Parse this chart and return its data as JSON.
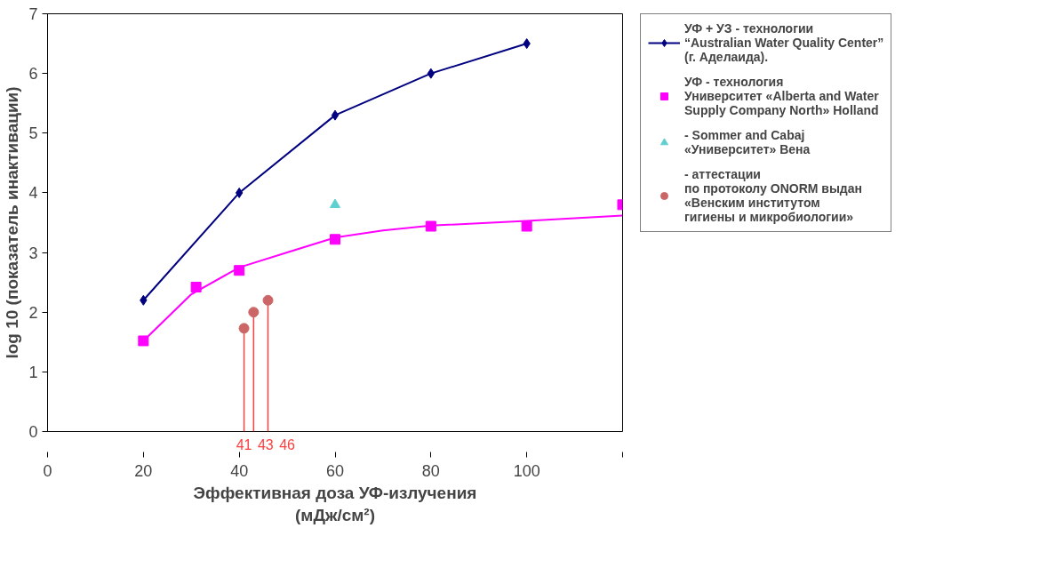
{
  "chart_data": {
    "type": "line",
    "xlabel": "Эффективная доза УФ-излучения\n(мДж/см²)",
    "ylabel": "log 10 (показатель инактивации)",
    "xlim": [
      0,
      120
    ],
    "xticks": [
      0,
      20,
      40,
      60,
      80,
      100,
      {
        "value": 120,
        "label": null
      }
    ],
    "ylim": [
      0,
      7
    ],
    "yticks": [
      0,
      1,
      2,
      3,
      4,
      5,
      6,
      7
    ],
    "grid": false,
    "legend": "right",
    "series": [
      {
        "name": "УФ + УЗ - технологии\n“Australian Water Quality Center”\n(г. Аделаида).",
        "marker": "diamond",
        "color": "#000080",
        "x": [
          20,
          40,
          60,
          80,
          100
        ],
        "values": [
          2.2,
          4.0,
          5.3,
          6.0,
          6.5
        ]
      },
      {
        "marker": "none",
        "color": "#ff00ff",
        "x": [
          20,
          30,
          40,
          50,
          60,
          70,
          80,
          100,
          120
        ],
        "values": [
          1.52,
          2.3,
          2.75,
          3.0,
          3.25,
          3.37,
          3.45,
          3.53,
          3.62
        ]
      },
      {
        "name": "УФ - технология\nУниверситет «Alberta and Water\nSupply Company North» Holland",
        "type": "scatter",
        "marker": "square",
        "color": "#ff00ff",
        "x": [
          20,
          31,
          40,
          60,
          80,
          100,
          120
        ],
        "values": [
          1.52,
          2.42,
          2.7,
          3.22,
          3.44,
          3.44,
          3.8
        ]
      },
      {
        "name": "- Sommer and Cabaj\n«Университет» Вена",
        "type": "scatter",
        "marker": "triangle",
        "color": "#5fcfcf",
        "x": [
          60
        ],
        "values": [
          3.8
        ]
      },
      {
        "name": "- аттестации\nпо протоколу ONORM выдан\n«Венским институтом\nгигиены и микробиологии»",
        "type": "lollipop",
        "marker": "circle",
        "color": "#cc6666",
        "x": [
          41,
          43,
          46
        ],
        "values": [
          1.73,
          2.0,
          2.2
        ]
      }
    ],
    "annotations": [
      "41",
      "43",
      "46"
    ]
  }
}
